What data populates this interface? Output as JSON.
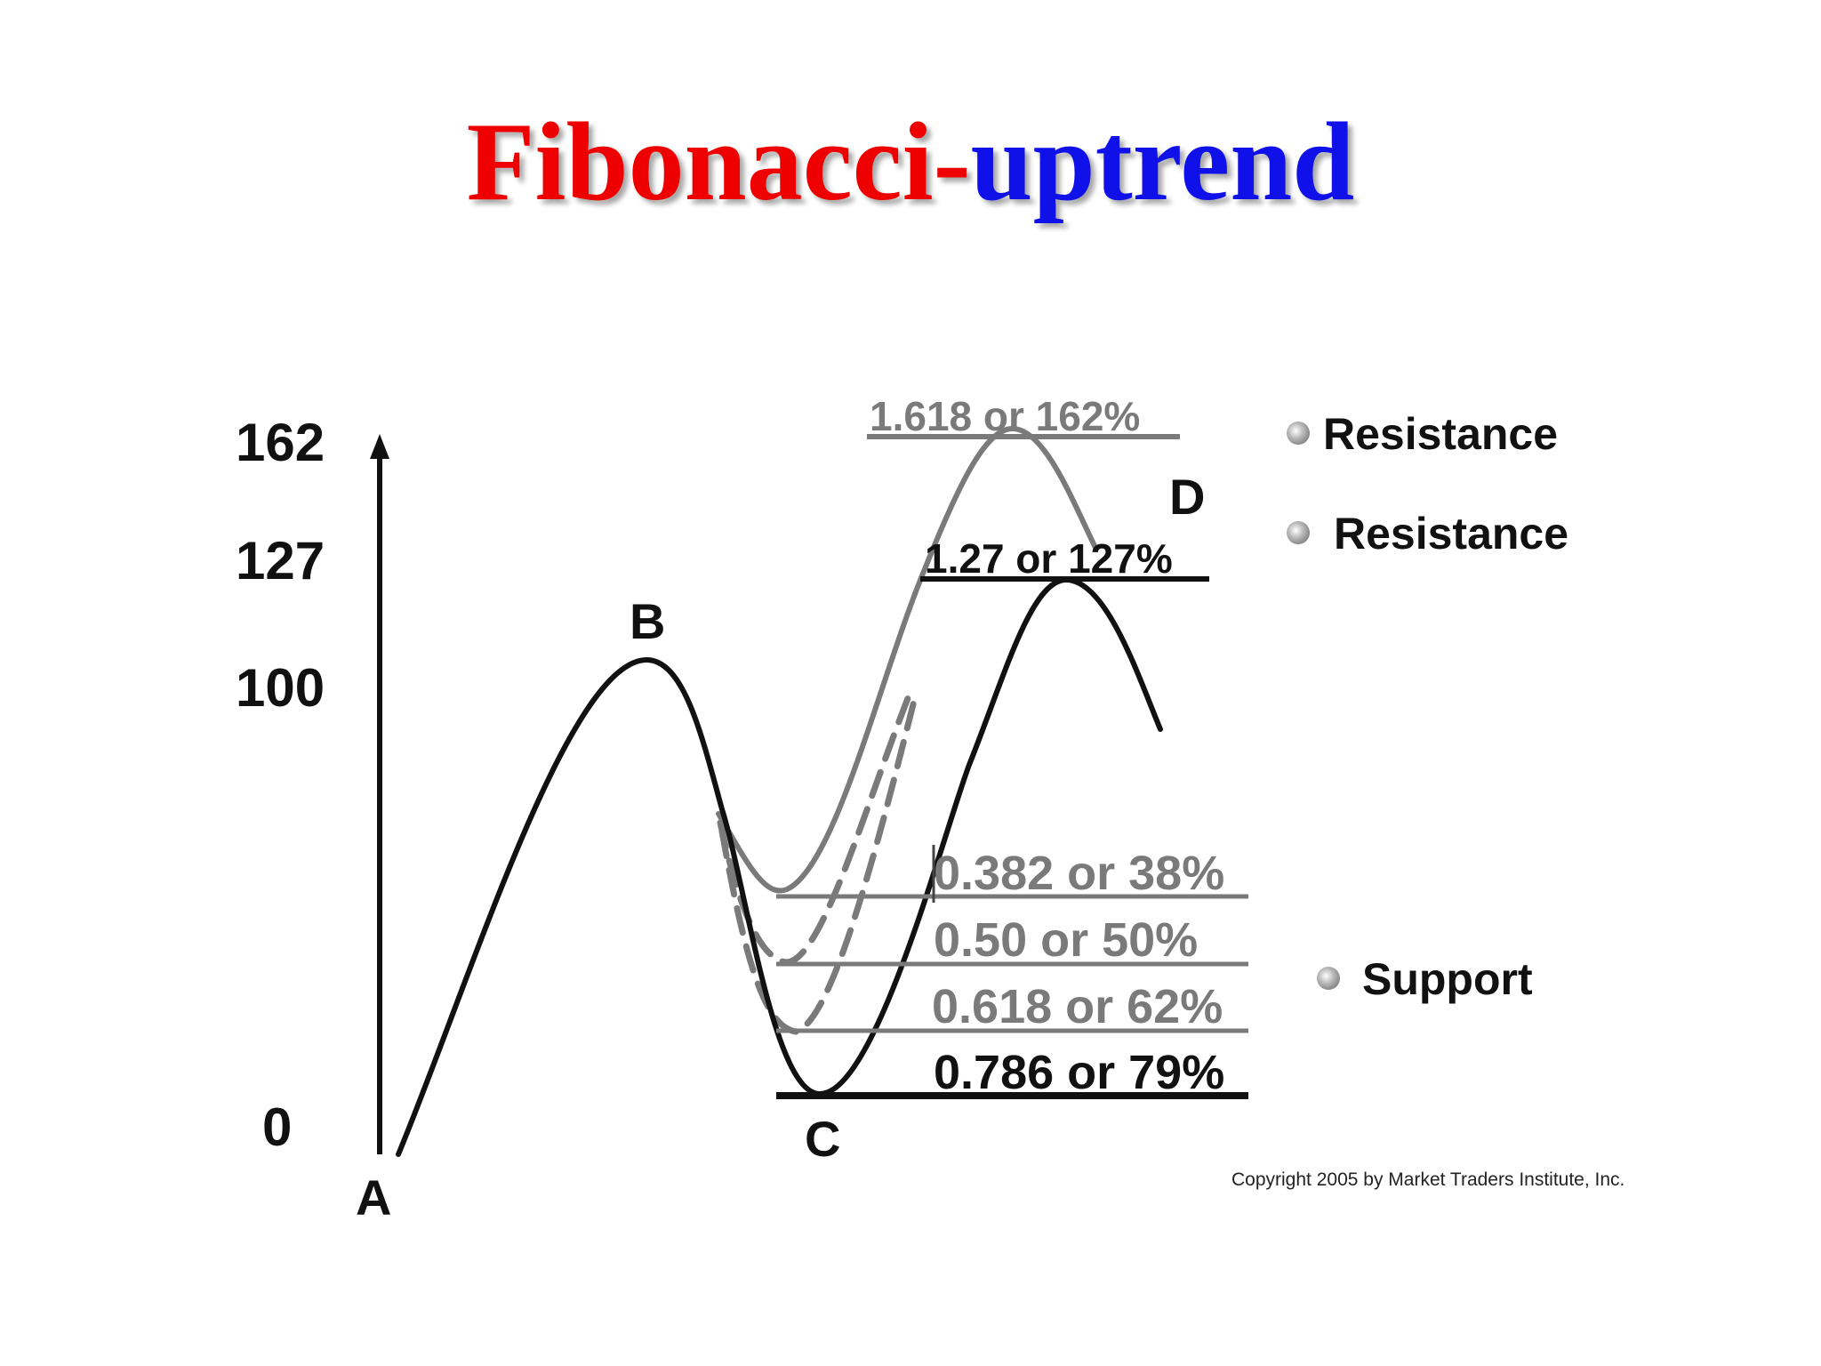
{
  "title": {
    "part1": "Fibonacci-",
    "part2": "uptrend"
  },
  "axis": {
    "ticks": [
      "162",
      "127",
      "100",
      "0"
    ]
  },
  "points": {
    "a": "A",
    "b": "B",
    "c": "C",
    "d": "D"
  },
  "levels": {
    "ext162": "1.618 or 162%",
    "ext127": "1.27 or 127%",
    "r38": "0.382 or 38%",
    "r50": "0.50 or 50%",
    "r62": "0.618 or 62%",
    "r79": "0.786 or 79%"
  },
  "legend": {
    "resistance1": "Resistance",
    "resistance2": "Resistance",
    "support": "Support"
  },
  "copyright": "Copyright 2005 by Market Traders Institute, Inc.",
  "colors": {
    "title_red": "#ee0000",
    "title_blue": "#1010e8",
    "main_line": "#111111",
    "alt_line": "#7a7a7a"
  }
}
